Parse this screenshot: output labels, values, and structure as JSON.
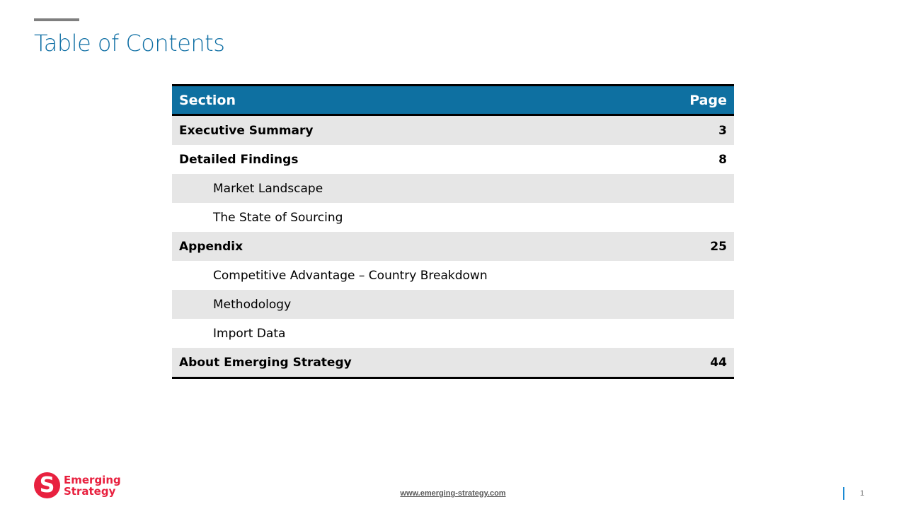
{
  "title": "Table of Contents",
  "table": {
    "headers": {
      "section": "Section",
      "page": "Page"
    },
    "rows": [
      {
        "section": "Executive Summary",
        "page": "3",
        "level": "main"
      },
      {
        "section": "Detailed Findings",
        "page": "8",
        "level": "main"
      },
      {
        "section": "Market Landscape",
        "page": "",
        "level": "sub"
      },
      {
        "section": "The State of Sourcing",
        "page": "",
        "level": "sub"
      },
      {
        "section": "Appendix",
        "page": "25",
        "level": "main"
      },
      {
        "section": "Competitive Advantage – Country Breakdown",
        "page": "",
        "level": "sub"
      },
      {
        "section": "Methodology",
        "page": "",
        "level": "sub"
      },
      {
        "section": "Import Data",
        "page": "",
        "level": "sub"
      },
      {
        "section": "About Emerging Strategy",
        "page": "44",
        "level": "main"
      }
    ]
  },
  "footer": {
    "logo_line1": "Emerging",
    "logo_line2": "Strategy",
    "url": "www.emerging-strategy.com",
    "page_number": "1"
  },
  "colors": {
    "accent": "#0e70a1",
    "brand": "#e8213f"
  }
}
